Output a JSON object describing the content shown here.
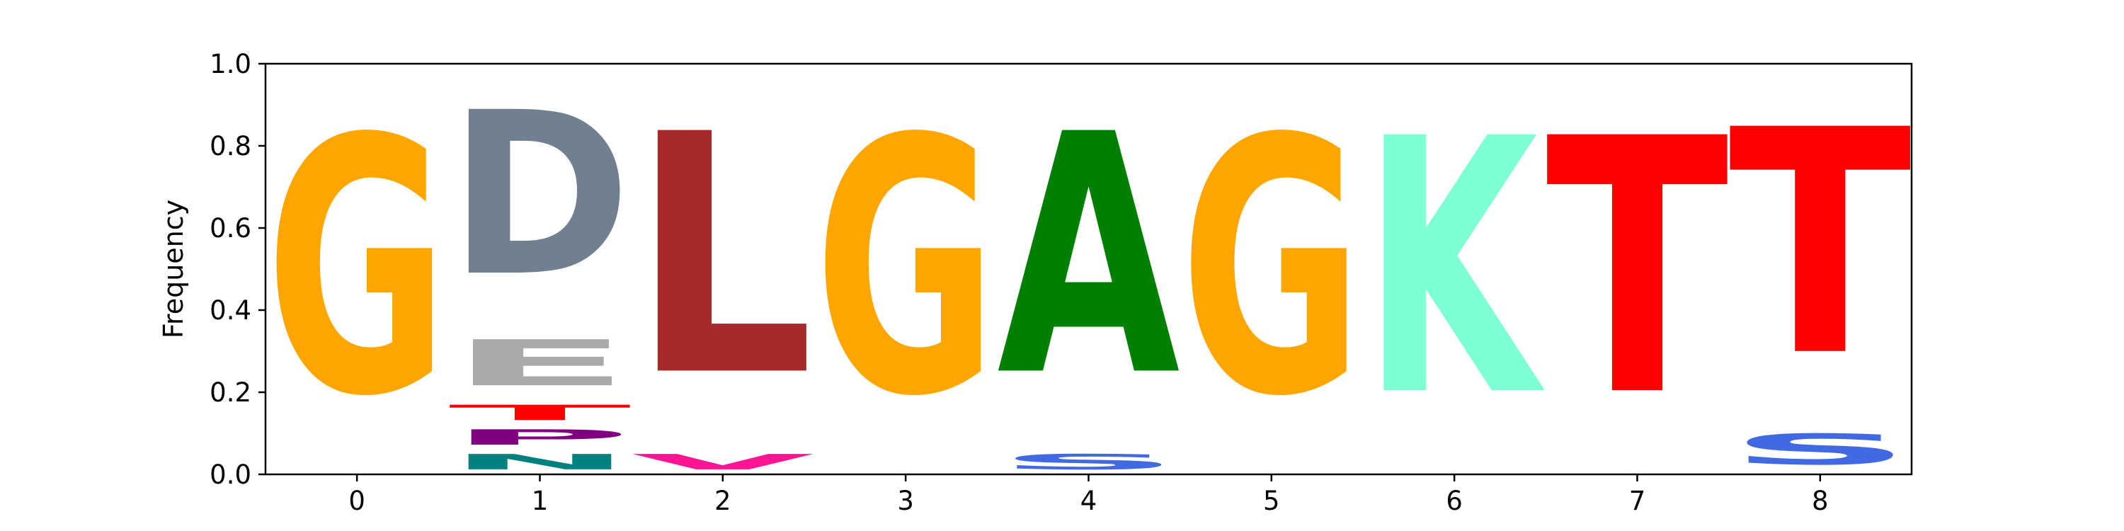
{
  "chart_data": {
    "type": "sequence-logo",
    "title": "",
    "xlabel": "",
    "ylabel": "Frequency",
    "xlim": [
      -0.5,
      8.5
    ],
    "ylim": [
      0,
      1
    ],
    "xticks": [
      "0",
      "1",
      "2",
      "3",
      "4",
      "5",
      "6",
      "7",
      "8"
    ],
    "yticks": [
      "0.0",
      "0.2",
      "0.4",
      "0.6",
      "0.8",
      "1.0"
    ],
    "grid": false,
    "colors": {
      "G": "#ffa500",
      "D": "#708090",
      "E": "#a9a9a9",
      "T": "#ff0000",
      "P": "#800080",
      "N": "#008080",
      "L": "#a52a2a",
      "V": "#ff1493",
      "A": "#008000",
      "S": "#4169e1",
      "K": "#7fffd4"
    },
    "positions": [
      {
        "x": 0,
        "letters": [
          {
            "letter": "G",
            "value": 1.0
          }
        ]
      },
      {
        "x": 1,
        "letters": [
          {
            "letter": "N",
            "value": 0.06
          },
          {
            "letter": "P",
            "value": 0.06
          },
          {
            "letter": "T",
            "value": 0.06
          },
          {
            "letter": "E",
            "value": 0.18
          },
          {
            "letter": "D",
            "value": 0.64
          }
        ]
      },
      {
        "x": 2,
        "letters": [
          {
            "letter": "V",
            "value": 0.06
          },
          {
            "letter": "L",
            "value": 0.94
          }
        ]
      },
      {
        "x": 3,
        "letters": [
          {
            "letter": "G",
            "value": 1.0
          }
        ]
      },
      {
        "x": 4,
        "letters": [
          {
            "letter": "S",
            "value": 0.06
          },
          {
            "letter": "A",
            "value": 0.94
          }
        ]
      },
      {
        "x": 5,
        "letters": [
          {
            "letter": "G",
            "value": 1.0
          }
        ]
      },
      {
        "x": 6,
        "letters": [
          {
            "letter": "K",
            "value": 1.0
          }
        ]
      },
      {
        "x": 7,
        "letters": [
          {
            "letter": "T",
            "value": 1.0
          }
        ]
      },
      {
        "x": 8,
        "letters": [
          {
            "letter": "S",
            "value": 0.12
          },
          {
            "letter": "T",
            "value": 0.88
          }
        ]
      }
    ]
  }
}
